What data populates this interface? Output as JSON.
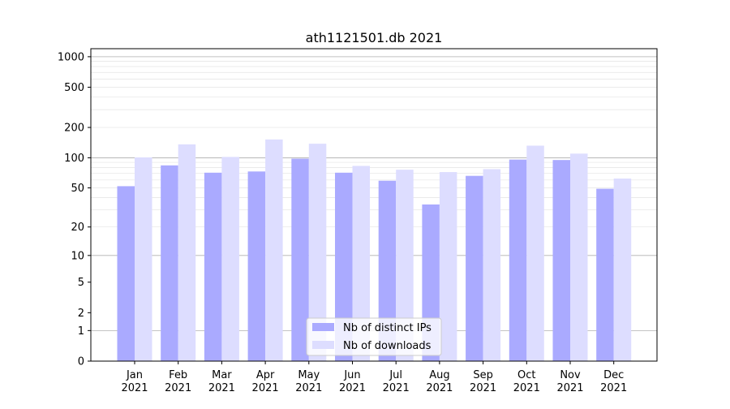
{
  "chart_data": {
    "type": "bar",
    "title": "ath1121501.db 2021",
    "xlabel": "",
    "ylabel": "",
    "yscale": "symlog",
    "ylim": [
      0,
      1200
    ],
    "yticks": [
      0,
      1,
      2,
      5,
      10,
      20,
      50,
      100,
      200,
      500,
      1000
    ],
    "grid": true,
    "legend_position": "bottom-center",
    "categories": [
      "Jan\n2021",
      "Feb\n2021",
      "Mar\n2021",
      "Apr\n2021",
      "May\n2021",
      "Jun\n2021",
      "Jul\n2021",
      "Aug\n2021",
      "Sep\n2021",
      "Oct\n2021",
      "Nov\n2021",
      "Dec\n2021"
    ],
    "series": [
      {
        "name": "Nb of distinct IPs",
        "color": "#aaaaff",
        "values": [
          52,
          84,
          71,
          73,
          98,
          71,
          59,
          34,
          66,
          96,
          95,
          49
        ]
      },
      {
        "name": "Nb of downloads",
        "color": "#ddddff",
        "values": [
          101,
          136,
          102,
          152,
          138,
          83,
          76,
          72,
          77,
          132,
          110,
          62
        ]
      }
    ]
  }
}
